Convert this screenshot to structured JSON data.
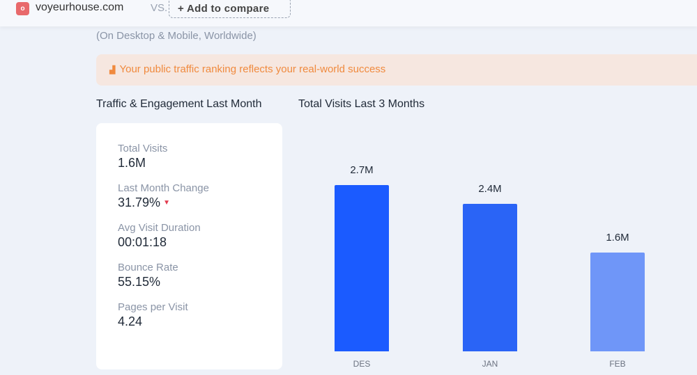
{
  "header": {
    "domain": "voyeurhouse.com",
    "vs": "VS.",
    "compare_label": "+ Add to compare"
  },
  "subtitle": "(On Desktop & Mobile, Worldwide)",
  "banner": {
    "text": "Your public traffic ranking reflects your real-world success"
  },
  "engagement": {
    "title": "Traffic & Engagement Last Month",
    "metrics": [
      {
        "label": "Total Visits",
        "value": "1.6M"
      },
      {
        "label": "Last Month Change",
        "value": "31.79%",
        "trend": "down"
      },
      {
        "label": "Avg Visit Duration",
        "value": "00:01:18"
      },
      {
        "label": "Bounce Rate",
        "value": "55.15%"
      },
      {
        "label": "Pages per Visit",
        "value": "4.24"
      }
    ]
  },
  "chart_data": {
    "type": "bar",
    "title": "Total Visits Last 3 Months",
    "categories": [
      "DES",
      "JAN",
      "FEB"
    ],
    "values": [
      2.7,
      2.4,
      1.6
    ],
    "value_labels": [
      "2.7M",
      "2.4M",
      "1.6M"
    ],
    "unit": "M",
    "colors": [
      "#1b5bff",
      "#2a64f6",
      "#6f96f8"
    ]
  }
}
